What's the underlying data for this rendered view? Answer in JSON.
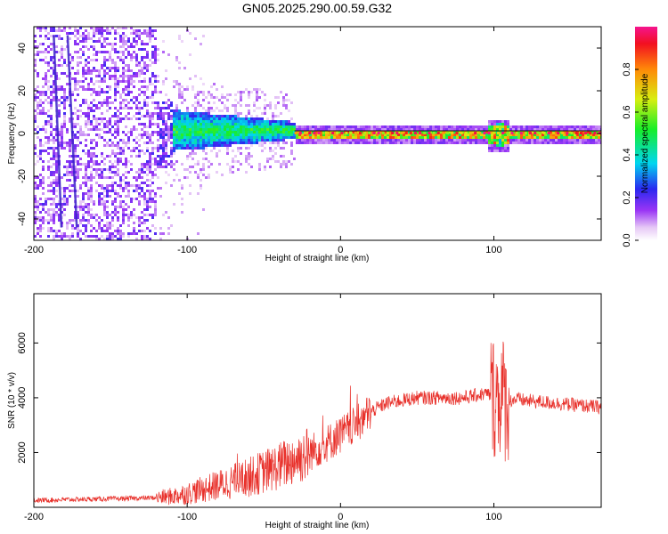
{
  "title": "GN05.2025.290.00.59.G32",
  "chart_data": [
    {
      "type": "heatmap",
      "xlabel": "Height of straight line (km)",
      "ylabel": "Frequency (Hz)",
      "xlim": [
        -200,
        170
      ],
      "ylim": [
        -50,
        50
      ],
      "xticks": [
        -200,
        -100,
        0,
        100
      ],
      "yticks": [
        -40,
        -20,
        0,
        20,
        40
      ],
      "colorbar": {
        "label": "Normalized spectral amplitude",
        "range": [
          0,
          1
        ],
        "ticks": [
          0.0,
          0.2,
          0.4,
          0.6,
          0.8
        ]
      },
      "features": {
        "carrier_frequency_hz": 0,
        "noise_below_km": -120,
        "broadened_band_km": [
          -115,
          -30
        ],
        "narrow_carrier_from_km": -30,
        "disturbance_near_km": 103
      }
    },
    {
      "type": "line",
      "xlabel": "Height of straight line (km)",
      "ylabel": "SNR (10 * v/v)",
      "xlim": [
        -200,
        170
      ],
      "ylim": [
        0,
        7800
      ],
      "xticks": [
        -200,
        -100,
        0,
        100
      ],
      "yticks": [
        2000,
        4000,
        6000
      ],
      "color": "#e8302a",
      "series": [
        {
          "name": "SNR",
          "x": [
            -200,
            -180,
            -160,
            -140,
            -120,
            -110,
            -100,
            -90,
            -80,
            -70,
            -60,
            -50,
            -40,
            -30,
            -20,
            -10,
            0,
            10,
            20,
            30,
            40,
            50,
            60,
            70,
            80,
            90,
            95,
            100,
            103,
            105,
            107,
            110,
            115,
            120,
            130,
            140,
            150,
            160,
            170
          ],
          "y": [
            250,
            280,
            300,
            320,
            350,
            400,
            500,
            650,
            800,
            950,
            1100,
            1300,
            1500,
            1750,
            2000,
            2300,
            2650,
            3000,
            3500,
            3800,
            3900,
            4000,
            4000,
            4000,
            4000,
            4100,
            4150,
            4050,
            4000,
            4200,
            3900,
            3900,
            3950,
            3900,
            3850,
            3800,
            3750,
            3700,
            3650
          ]
        }
      ]
    }
  ]
}
